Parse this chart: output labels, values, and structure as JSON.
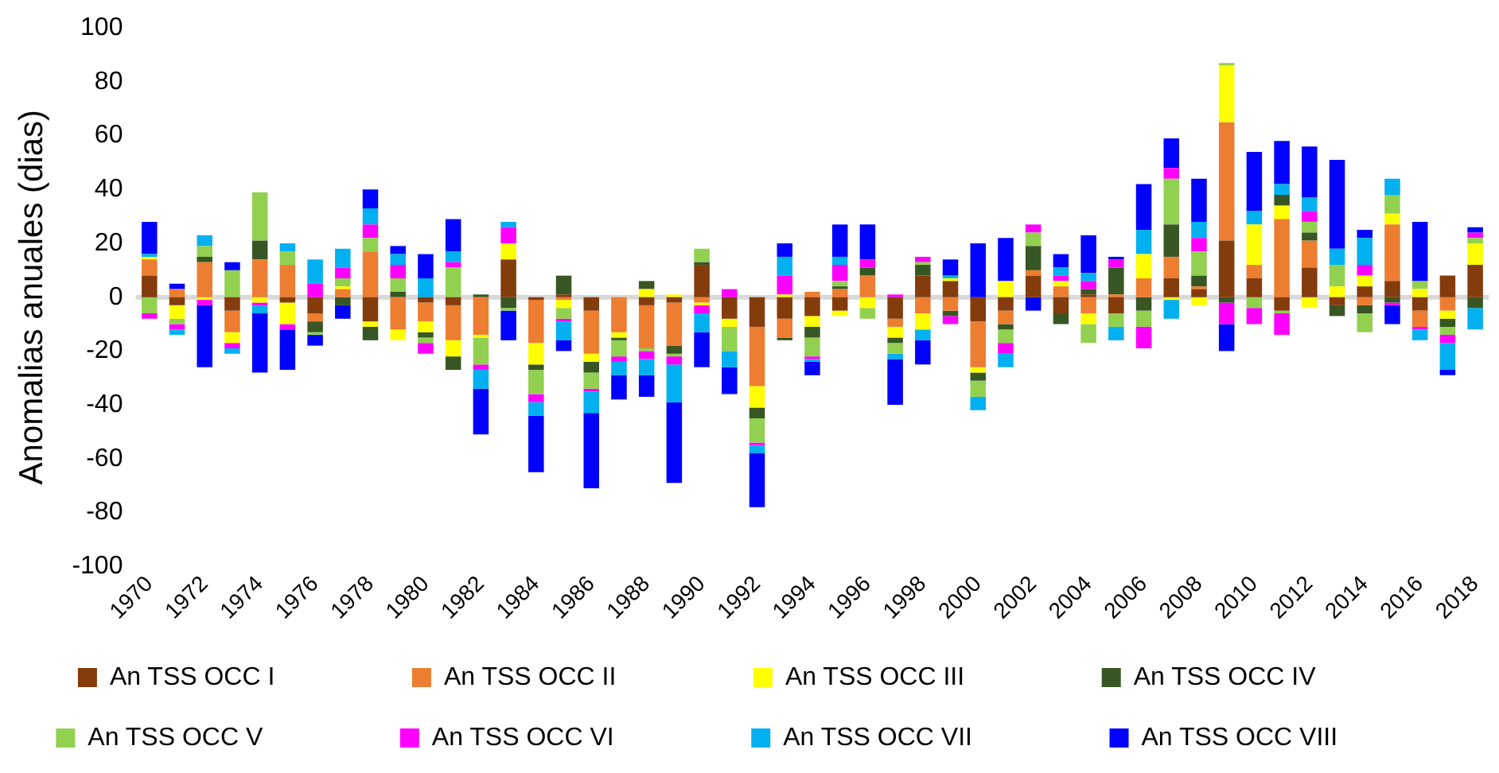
{
  "chart_data": {
    "type": "bar",
    "stacked": true,
    "ylabel": "Anomalias anuales (dias)",
    "categories": [
      "1970",
      null,
      "1972",
      null,
      "1974",
      null,
      "1976",
      null,
      "1978",
      null,
      "1980",
      null,
      "1982",
      null,
      "1984",
      null,
      "1986",
      null,
      "1988",
      null,
      "1990",
      null,
      "1992",
      null,
      "1994",
      null,
      "1996",
      null,
      "1998",
      null,
      "2000",
      null,
      "2002",
      null,
      "2004",
      null,
      "2006",
      null,
      "2008",
      null,
      "2010",
      null,
      "2012",
      null,
      "2014",
      null,
      "2016",
      null,
      "2018"
    ],
    "series": [
      {
        "name": "An TSS OCC I",
        "color": "#843c0c",
        "values": [
          8,
          -3,
          0,
          -5,
          0,
          -2,
          -6,
          0,
          -9,
          0,
          -2,
          -3,
          0,
          14,
          -1,
          1,
          -5,
          0,
          -3,
          -2,
          12,
          -8,
          -11,
          -8,
          -7,
          -5,
          0,
          -8,
          8,
          6,
          -9,
          -5,
          8,
          -6,
          1,
          -6,
          0,
          7,
          3,
          21,
          7,
          -5,
          11,
          -3,
          4,
          6,
          -5,
          8,
          12
        ]
      },
      {
        "name": "An TSS OCC II",
        "color": "#ed7d31",
        "values": [
          6,
          3,
          13,
          -8,
          14,
          12,
          -3,
          3,
          17,
          -12,
          -7,
          -13,
          -14,
          0,
          -16,
          -1,
          -16,
          -13,
          -16,
          -16,
          -2,
          0,
          -22,
          -7,
          2,
          3,
          8,
          -3,
          -6,
          -5,
          -17,
          -5,
          2,
          4,
          -6,
          1,
          7,
          8,
          1,
          44,
          5,
          29,
          10,
          0,
          -3,
          21,
          -6,
          -5,
          0
        ]
      },
      {
        "name": "An TSS OCC III",
        "color": "#ffff00",
        "values": [
          1,
          -5,
          -1,
          -4,
          -2,
          -8,
          0,
          1,
          -2,
          -4,
          -4,
          -6,
          -1,
          6,
          -8,
          -3,
          -3,
          -2,
          3,
          1,
          -1,
          -3,
          -8,
          1,
          -4,
          -2,
          -4,
          -4,
          -6,
          1,
          -2,
          6,
          0,
          2,
          -4,
          0,
          9,
          -1,
          -3,
          21,
          15,
          5,
          -4,
          4,
          4,
          4,
          3,
          -3,
          8
        ]
      },
      {
        "name": "An TSS OCC IV",
        "color": "#375623",
        "values": [
          0,
          0,
          2,
          0,
          7,
          0,
          -4,
          -3,
          -5,
          2,
          -2,
          -5,
          1,
          -4,
          -2,
          7,
          -4,
          -1,
          3,
          -3,
          1,
          0,
          -4,
          -1,
          -4,
          1,
          3,
          -2,
          4,
          -2,
          -3,
          -2,
          9,
          -4,
          2,
          10,
          -5,
          12,
          4,
          -2,
          0,
          4,
          3,
          -4,
          -3,
          -2,
          0,
          -3,
          -4
        ]
      },
      {
        "name": "An TSS OCC V",
        "color": "#92d050",
        "values": [
          -6,
          -2,
          4,
          10,
          18,
          5,
          -1,
          3,
          5,
          5,
          -2,
          11,
          -10,
          -1,
          -9,
          -4,
          -6,
          -6,
          -1,
          -1,
          5,
          -9,
          -9,
          0,
          -7,
          2,
          -4,
          -4,
          1,
          0,
          -6,
          -5,
          5,
          0,
          -7,
          -5,
          -6,
          17,
          9,
          1,
          -4,
          -1,
          4,
          8,
          -7,
          7,
          3,
          -3,
          2
        ]
      },
      {
        "name": "An TSS OCC VI",
        "color": "#ff00ff",
        "values": [
          -2,
          -2,
          -2,
          -2,
          -1,
          -2,
          5,
          4,
          5,
          5,
          -4,
          2,
          -2,
          6,
          -3,
          -1,
          -1,
          -2,
          -3,
          -3,
          -3,
          3,
          -1,
          7,
          -1,
          6,
          3,
          1,
          2,
          -3,
          0,
          -4,
          3,
          2,
          3,
          3,
          -8,
          4,
          5,
          -8,
          -6,
          -8,
          4,
          0,
          4,
          -1,
          -1,
          -3,
          2
        ]
      },
      {
        "name": "An TSS OCC VII",
        "color": "#00b0f0",
        "values": [
          1,
          -2,
          4,
          -2,
          -3,
          3,
          9,
          7,
          6,
          4,
          7,
          4,
          -7,
          2,
          -5,
          -7,
          -8,
          -5,
          -6,
          -14,
          -7,
          -6,
          -3,
          7,
          -1,
          3,
          0,
          -2,
          -4,
          1,
          -5,
          -5,
          0,
          3,
          3,
          -5,
          9,
          -7,
          6,
          0,
          5,
          4,
          5,
          6,
          10,
          6,
          -4,
          -10,
          -8
        ]
      },
      {
        "name": "An TSS OCC VIII",
        "color": "#0000ff",
        "values": [
          12,
          2,
          -23,
          3,
          -22,
          -15,
          -4,
          -5,
          7,
          3,
          9,
          12,
          -17,
          -11,
          -21,
          -4,
          -28,
          -9,
          -8,
          -30,
          -13,
          -10,
          -20,
          5,
          -5,
          12,
          13,
          -17,
          -9,
          6,
          20,
          16,
          -5,
          5,
          14,
          1,
          17,
          11,
          16,
          -10,
          22,
          16,
          19,
          33,
          3,
          -7,
          22,
          -2,
          2
        ]
      }
    ],
    "ylim": [
      -100,
      100
    ],
    "yticks": [
      -100,
      -80,
      -60,
      -40,
      -20,
      0,
      20,
      40,
      60,
      80,
      100
    ],
    "ref_lines": [
      {
        "axis": "y",
        "value": 0,
        "color": "#d9d9d9"
      }
    ],
    "grid": false,
    "legend": "bottom"
  }
}
